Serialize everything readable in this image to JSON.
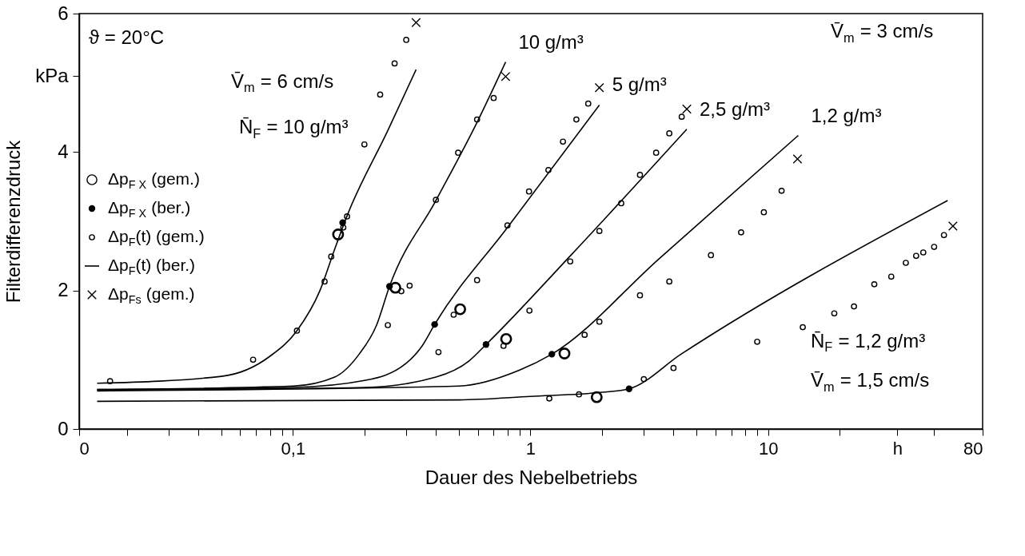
{
  "chart_data": {
    "type": "line",
    "xlabel": "Dauer des Nebelbetriebs",
    "ylabel": "Filterdifferenzdruck",
    "log": "x",
    "grid": false,
    "legend": "left",
    "xlim": [
      0.0126,
      80
    ],
    "ylim": [
      0,
      6
    ],
    "xticks": [
      {
        "value": 0.0126,
        "label": "0"
      },
      {
        "value": 0.02,
        "label": null
      },
      {
        "value": 0.03,
        "label": null
      },
      {
        "value": 0.04,
        "label": null
      },
      {
        "value": 0.05,
        "label": null
      },
      {
        "value": 0.06,
        "label": null
      },
      {
        "value": 0.07,
        "label": null
      },
      {
        "value": 0.08,
        "label": null
      },
      {
        "value": 0.09,
        "label": null
      },
      {
        "value": 0.1,
        "label": "0,1"
      },
      {
        "value": 0.2,
        "label": null
      },
      {
        "value": 0.3,
        "label": null
      },
      {
        "value": 0.4,
        "label": null
      },
      {
        "value": 0.5,
        "label": null
      },
      {
        "value": 0.6,
        "label": null
      },
      {
        "value": 0.7,
        "label": null
      },
      {
        "value": 0.8,
        "label": null
      },
      {
        "value": 0.9,
        "label": null
      },
      1,
      {
        "value": 2,
        "label": null
      },
      {
        "value": 3,
        "label": null
      },
      {
        "value": 4,
        "label": null
      },
      {
        "value": 5,
        "label": null
      },
      {
        "value": 6,
        "label": null
      },
      {
        "value": 7,
        "label": null
      },
      {
        "value": 8,
        "label": null
      },
      {
        "value": 9,
        "label": null
      },
      10,
      {
        "value": 20,
        "label": null
      },
      {
        "value": 35,
        "label": "h"
      },
      {
        "value": 50,
        "label": null
      },
      80
    ],
    "yticks": [
      0,
      2,
      4,
      {
        "value": 5.1,
        "label": "kPa"
      },
      6
    ],
    "series": [
      {
        "name": "Δp$_{F X}$ (gem.)",
        "type": "scatter",
        "marker": "double circle",
        "color": "#000000",
        "x": [
          0.155,
          0.27,
          0.506,
          0.79,
          1.39,
          1.9
        ],
        "values": [
          2.81,
          2.04,
          1.73,
          1.3,
          1.09,
          0.46
        ]
      },
      {
        "name": "Δp$_{F X}$ (ber.)",
        "type": "scatter",
        "marker": "filled circle",
        "color": "#000000",
        "x": [
          0.162,
          0.255,
          0.395,
          0.65,
          1.23,
          2.6
        ],
        "values": [
          2.98,
          2.06,
          1.51,
          1.22,
          1.08,
          0.58
        ]
      },
      {
        "name": "Δp$_{F}$(t) (gem.)",
        "type": "scatter",
        "marker": "circle",
        "color": "#000000",
        "x": [
          0.017,
          0.068,
          0.104,
          0.136,
          0.145,
          0.163,
          0.169,
          0.2,
          0.233,
          0.268,
          0.3,
          0.251,
          0.286,
          0.31,
          0.4,
          0.496,
          0.596,
          0.7,
          0.41,
          0.475,
          0.596,
          0.8,
          0.986,
          1.19,
          1.37,
          1.56,
          1.75,
          0.77,
          0.99,
          1.47,
          1.95,
          2.41,
          2.89,
          3.38,
          3.84,
          4.33,
          1.69,
          1.95,
          2.89,
          3.84,
          5.75,
          7.7,
          9.6,
          11.4,
          1.2,
          1.6,
          3.0,
          4.0,
          9,
          14,
          19,
          23,
          28,
          33,
          38,
          42,
          45,
          50,
          55
        ],
        "values": [
          0.69,
          1.0,
          1.42,
          2.13,
          2.49,
          2.91,
          3.07,
          4.11,
          4.83,
          5.28,
          5.62,
          1.5,
          1.99,
          2.07,
          3.31,
          3.99,
          4.47,
          4.78,
          1.11,
          1.65,
          2.15,
          2.94,
          3.43,
          3.74,
          4.15,
          4.47,
          4.7,
          1.2,
          1.71,
          2.42,
          2.86,
          3.26,
          3.67,
          3.99,
          4.27,
          4.51,
          1.36,
          1.55,
          1.93,
          2.13,
          2.51,
          2.84,
          3.13,
          3.44,
          0.44,
          0.5,
          0.72,
          0.88,
          1.26,
          1.47,
          1.67,
          1.77,
          2.09,
          2.2,
          2.4,
          2.5,
          2.55,
          2.63,
          2.8
        ]
      },
      {
        "name": "Δp$_{F}$(t) (ber.)",
        "color": "#000000",
        "x": [
          0.015,
          0.05,
          0.08,
          0.104,
          0.13,
          0.15,
          0.17,
          0.25,
          0.33
        ],
        "values": [
          0.66,
          0.76,
          1.05,
          1.42,
          2.0,
          2.6,
          3.1,
          4.3,
          5.19
        ]
      },
      {
        "color": "#000000",
        "x": [
          0.015,
          0.1,
          0.15,
          0.19,
          0.225,
          0.255,
          0.4,
          0.6,
          0.786
        ],
        "values": [
          0.57,
          0.62,
          0.75,
          1.08,
          1.5,
          2.06,
          3.3,
          4.45,
          5.3
        ]
      },
      {
        "color": "#000000",
        "x": [
          0.015,
          0.1,
          0.2,
          0.3,
          0.35,
          0.395,
          0.8,
          1.95
        ],
        "values": [
          0.57,
          0.6,
          0.7,
          0.95,
          1.2,
          1.51,
          2.91,
          4.68
        ]
      },
      {
        "color": "#000000",
        "x": [
          0.015,
          0.2,
          0.4,
          0.55,
          0.65,
          1.47,
          4.55
        ],
        "values": [
          0.56,
          0.6,
          0.75,
          0.98,
          1.22,
          2.5,
          4.33
        ]
      },
      {
        "color": "#000000",
        "x": [
          0.015,
          0.5,
          0.9,
          1.23,
          3.48,
          13.4
        ],
        "values": [
          0.55,
          0.62,
          0.85,
          1.08,
          2.46,
          4.24
        ]
      },
      {
        "color": "#000000",
        "x": [
          0.015,
          0.5,
          1.0,
          2.0,
          2.6,
          4.3,
          57
        ],
        "values": [
          0.4,
          0.42,
          0.47,
          0.53,
          0.58,
          1.08,
          3.3
        ]
      },
      {
        "name": "Δp$_{Fs}$ (gem.)",
        "type": "scatter",
        "marker": "cross",
        "color": "#000000",
        "x": [
          0.33,
          0.786,
          1.95,
          4.55,
          13.3,
          60
        ],
        "values": [
          5.87,
          5.09,
          4.93,
          4.62,
          3.9,
          2.93
        ]
      }
    ],
    "annotations": [
      "ϑ = 20°C",
      "V̄$_{m}$ = 6 cm/s",
      "N̄$_{F}$ = 10 g/m³",
      "V̄$_{m}$ = 3 cm/s",
      "N̄$_{F}$ = 1,2 g/m³",
      "V̄$_{m}$ = 1,5 cm/s",
      {
        "text": "10 g/m³",
        "x": 0.786,
        "y": 5.3
      },
      {
        "text": "5 g/m³",
        "x": 1.95,
        "y": 4.68
      },
      {
        "text": "2,5 g/m³",
        "x": 4.55,
        "y": 4.33
      },
      {
        "text": "1,2 g/m³",
        "x": 13.4,
        "y": 4.24
      }
    ]
  }
}
